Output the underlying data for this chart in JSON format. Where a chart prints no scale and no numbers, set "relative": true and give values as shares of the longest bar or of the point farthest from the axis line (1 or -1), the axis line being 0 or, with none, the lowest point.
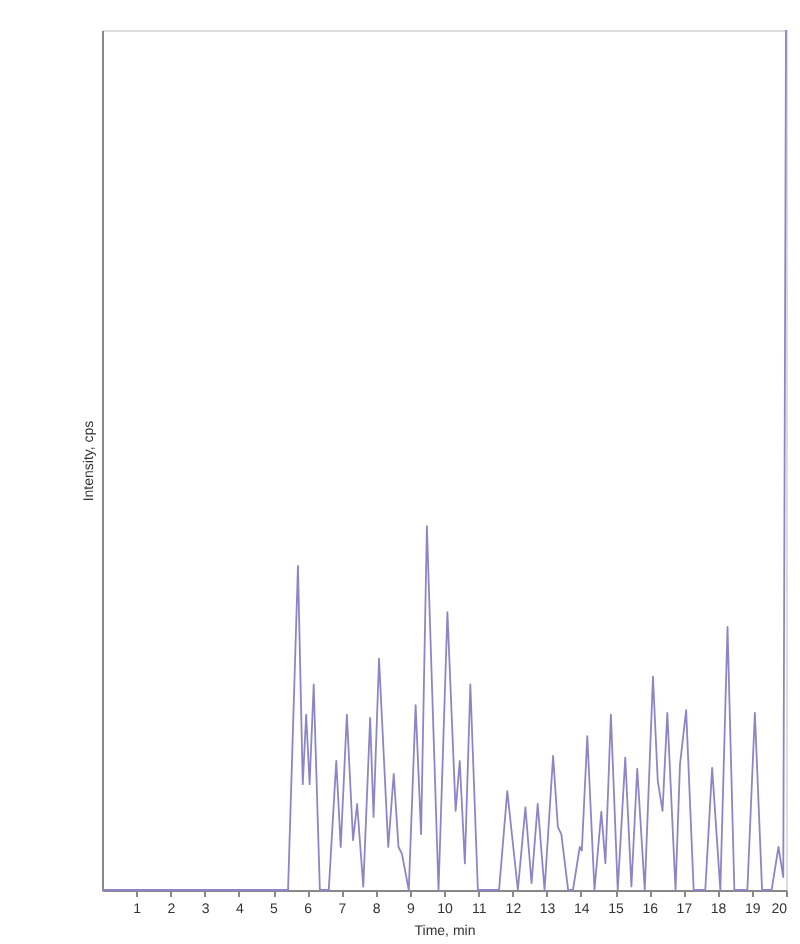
{
  "chart_data": {
    "type": "line",
    "relative": true,
    "xlabel": "Time, min",
    "ylabel": "Intensity, cps",
    "xlim": [
      0,
      20
    ],
    "xticks": [
      1,
      2,
      3,
      4,
      5,
      6,
      7,
      8,
      9,
      10,
      11,
      12,
      13,
      14,
      15,
      16,
      17,
      18,
      19,
      20
    ],
    "grid": false,
    "legend": false,
    "marker": "none",
    "line_style": "solid",
    "series": [
      {
        "color": "#8c86c8",
        "x": [
          0,
          5.44,
          5.73,
          5.87,
          5.97,
          6.07,
          6.19,
          6.37,
          6.63,
          6.85,
          6.98,
          7.16,
          7.34,
          7.46,
          7.64,
          7.84,
          7.94,
          8.1,
          8.37,
          8.53,
          8.67,
          8.77,
          8.97,
          9.17,
          9.33,
          9.5,
          9.84,
          10.1,
          10.34,
          10.46,
          10.61,
          10.77,
          10.99,
          11.61,
          11.85,
          12.16,
          12.38,
          12.56,
          12.74,
          12.94,
          13.19,
          13.33,
          13.43,
          13.63,
          13.77,
          13.97,
          14.03,
          14.19,
          14.4,
          14.6,
          14.72,
          14.88,
          15.08,
          15.3,
          15.48,
          15.65,
          15.87,
          16.11,
          16.25,
          16.39,
          16.53,
          16.77,
          16.9,
          17.08,
          17.3,
          17.64,
          17.84,
          18.08,
          18.29,
          18.49,
          18.87,
          19.09,
          19.3,
          19.58,
          19.78,
          19.92,
          20
        ],
        "values": [
          0,
          0,
          0.377,
          0.123,
          0.204,
          0.123,
          0.239,
          0,
          0,
          0.15,
          0.05,
          0.204,
          0.058,
          0.1,
          0.004,
          0.2,
          0.085,
          0.269,
          0.05,
          0.135,
          0.05,
          0.042,
          0,
          0.215,
          0.065,
          0.423,
          0,
          0.323,
          0.092,
          0.15,
          0.031,
          0.239,
          0,
          0,
          0.115,
          0,
          0.096,
          0.008,
          0.1,
          0,
          0.156,
          0.073,
          0.065,
          0,
          0,
          0.05,
          0.046,
          0.179,
          0,
          0.091,
          0.031,
          0.204,
          0,
          0.154,
          0.004,
          0.141,
          0,
          0.248,
          0.127,
          0.092,
          0.206,
          0,
          0.146,
          0.209,
          0,
          0,
          0.142,
          0,
          0.306,
          0,
          0,
          0.206,
          0,
          0,
          0.05,
          0.015,
          1
        ]
      }
    ]
  }
}
